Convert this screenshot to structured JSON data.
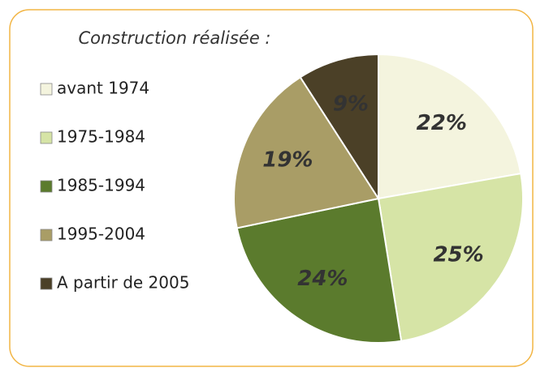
{
  "chart_data": {
    "type": "pie",
    "title": "Construction réalisée :",
    "categories": [
      "avant 1974",
      "1975-1984",
      "1985-1994",
      "1995-2004",
      "A partir de 2005"
    ],
    "values": [
      22,
      25,
      24,
      19,
      9
    ],
    "value_labels": [
      "22%",
      "25%",
      "24%",
      "19%",
      "9%"
    ],
    "colors": [
      "#f4f4de",
      "#d6e4a6",
      "#5b7b2d",
      "#a99d66",
      "#4b4027"
    ],
    "legend": "left"
  }
}
